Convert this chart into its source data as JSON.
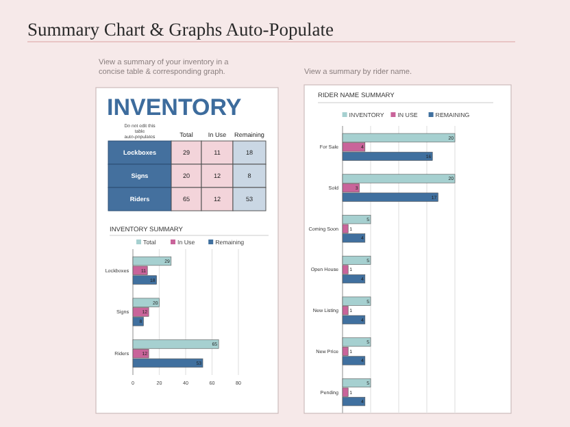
{
  "chart_data": [
    {
      "type": "other",
      "title": "Summary Chart & Graphs Auto-Populate",
      "annotations": [
        "View a summary of your inventory in a concise table & corresponding graph.",
        "View a summary by rider name."
      ]
    },
    {
      "type": "heatmap",
      "data_labels": true,
      "title": "INVENTORY",
      "annotations": [
        "Do not edit this table auto-populates"
      ],
      "categories": [
        "Total",
        "In Use",
        "Remaining"
      ],
      "y_categories": [
        "Lockboxes",
        "Signs",
        "Riders"
      ],
      "cells": [
        [
          29,
          11,
          18
        ],
        [
          20,
          12,
          8
        ],
        [
          65,
          12,
          53
        ]
      ],
      "colors": [
        "#f3d4da",
        "#f3d4da",
        "#cad7e4"
      ],
      "color": "#44709e"
    },
    {
      "type": "bar",
      "orientation": "horizontal",
      "title": "INVENTORY SUMMARY",
      "categories": [
        "Lockboxes",
        "Signs",
        "Riders"
      ],
      "series": [
        {
          "name": "Total",
          "color": "#a6d0d0",
          "values": [
            29,
            20,
            65
          ]
        },
        {
          "name": "In Use",
          "color": "#c9649a",
          "values": [
            11,
            12,
            12
          ]
        },
        {
          "name": "Remaining",
          "color": "#40709f",
          "values": [
            18,
            8,
            53
          ]
        }
      ],
      "xlim": [
        0,
        80
      ],
      "xticks": [
        0,
        20,
        40,
        60,
        80
      ],
      "grid": "x",
      "legend": "top",
      "data_labels": true
    },
    {
      "type": "bar",
      "orientation": "horizontal",
      "title": "RIDER NAME SUMMARY",
      "categories": [
        "For Sale",
        "Sold",
        "Coming Soon",
        "Open House",
        "New Listing",
        "New Price",
        "Pending"
      ],
      "series": [
        {
          "name": "INVENTORY",
          "color": "#a6d0d0",
          "values": [
            20,
            20,
            5,
            5,
            5,
            5,
            5
          ]
        },
        {
          "name": "IN USE",
          "color": "#c9649a",
          "values": [
            4,
            3,
            1,
            1,
            1,
            1,
            1
          ]
        },
        {
          "name": "REMAINING",
          "color": "#40709f",
          "values": [
            16,
            17,
            4,
            4,
            4,
            4,
            4
          ]
        }
      ],
      "xlim": [
        0,
        20
      ],
      "xticks": [
        {
          "value": 0,
          "label": null
        },
        {
          "value": 5,
          "label": null
        },
        {
          "value": 10,
          "label": null
        },
        {
          "value": 15,
          "label": null
        },
        {
          "value": 20,
          "label": null
        }
      ],
      "grid": "x",
      "legend": "top",
      "data_labels": true,
      "tick_labels": "y"
    }
  ]
}
